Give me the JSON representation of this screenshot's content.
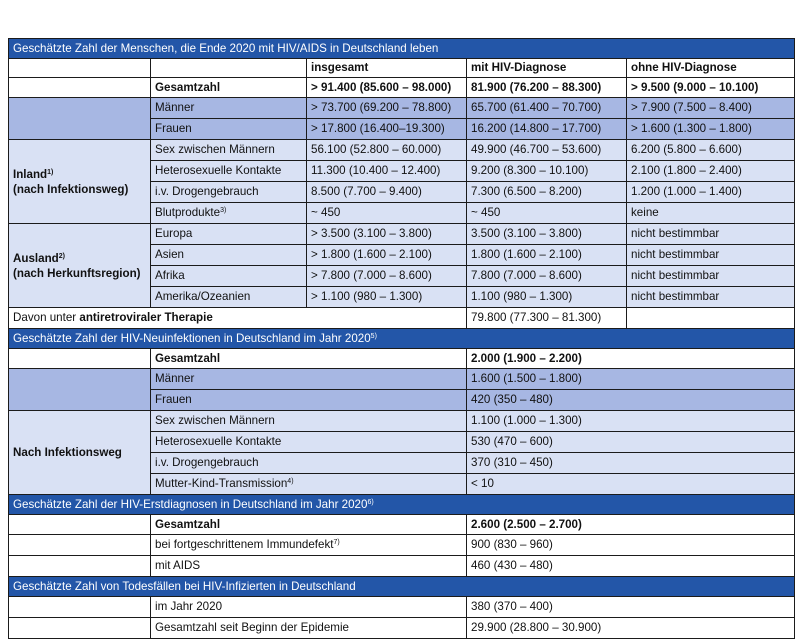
{
  "section1": {
    "title": "Geschätzte Zahl der Menschen, die Ende 2020 mit HIV/AIDS in Deutschland leben",
    "col_headers": [
      "insgesamt",
      "mit HIV-Diagnose",
      "ohne HIV-Diagnose"
    ],
    "total": {
      "label": "Gesamtzahl",
      "values": [
        "> 91.400 (85.600 – 98.000)",
        "81.900 (76.200 – 88.300)",
        "> 9.500 (9.000 – 10.100)"
      ]
    },
    "sex_rows": [
      {
        "label": "Männer",
        "values": [
          "> 73.700 (69.200 – 78.800)",
          "65.700 (61.400 – 70.700)",
          "> 7.900 (7.500 – 8.400)"
        ]
      },
      {
        "label": "Frauen",
        "values": [
          "> 17.800 (16.400–19.300)",
          "16.200 (14.800 – 17.700)",
          "> 1.600 (1.300 – 1.800)"
        ]
      }
    ],
    "inland_group": {
      "line1": "Inland",
      "sup": "1)",
      "line2": "(nach Infektionsweg)"
    },
    "inland_rows": [
      {
        "label": "Sex zwischen Männern",
        "values": [
          "56.100 (52.800 – 60.000)",
          "49.900 (46.700 – 53.600)",
          "6.200 (5.800 – 6.600)"
        ]
      },
      {
        "label": "Heterosexuelle Kontakte",
        "values": [
          "11.300 (10.400 – 12.400)",
          "9.200 (8.300 – 10.100)",
          "2.100 (1.800 – 2.400)"
        ]
      },
      {
        "label": "i.v. Drogengebrauch",
        "values": [
          "8.500 (7.700 – 9.400)",
          "7.300 (6.500 – 8.200)",
          "1.200 (1.000 – 1.400)"
        ]
      }
    ],
    "blood": {
      "label": "Blutprodukte",
      "sup": "3)",
      "values": [
        "~ 450",
        "~ 450",
        "keine"
      ]
    },
    "ausland_group": {
      "line1": "Ausland",
      "sup": "2)",
      "line2": "(nach Herkunftsregion)"
    },
    "ausland_rows": [
      {
        "label": "Europa",
        "values": [
          "> 3.500 (3.100 – 3.800)",
          "3.500 (3.100 – 3.800)",
          "nicht bestimmbar"
        ]
      },
      {
        "label": "Asien",
        "values": [
          "> 1.800 (1.600 – 2.100)",
          "1.800 (1.600 – 2.100)",
          "nicht bestimmbar"
        ]
      },
      {
        "label": "Afrika",
        "values": [
          "> 7.800 (7.000 – 8.600)",
          "7.800 (7.000 – 8.600)",
          "nicht bestimmbar"
        ]
      },
      {
        "label": "Amerika/Ozeanien",
        "values": [
          "> 1.100 (980 – 1.300)",
          "1.100 (980 – 1.300)",
          "nicht bestimmbar"
        ]
      }
    ],
    "art": {
      "prefix": "Davon unter ",
      "bold": "antiretroviraler Therapie",
      "value": "79.800 (77.300 – 81.300)"
    }
  },
  "section2": {
    "title": "Geschätzte Zahl der HIV-Neuinfektionen in Deutschland im Jahr 2020",
    "sup": "5)",
    "total": {
      "label": "Gesamtzahl",
      "value": "2.000 (1.900 – 2.200)"
    },
    "sex_rows": [
      {
        "label": "Männer",
        "value": "1.600 (1.500 – 1.800)"
      },
      {
        "label": "Frauen",
        "value": "420 (350 – 480)"
      }
    ],
    "group": "Nach Infektionsweg",
    "route_rows": [
      {
        "label": "Sex zwischen Männern",
        "value": "1.100 (1.000 – 1.300)"
      },
      {
        "label": "Heterosexuelle Kontakte",
        "value": "530 (470 – 600)"
      },
      {
        "label": "i.v. Drogengebrauch",
        "value": "370 (310 – 450)"
      }
    ],
    "mk": {
      "label": "Mutter-Kind-Transmission",
      "sup": "4)",
      "value": "< 10"
    }
  },
  "section3": {
    "title": "Geschätzte Zahl der HIV-Erstdiagnosen in Deutschland im Jahr 2020",
    "sup": "6)",
    "total": {
      "label": "Gesamtzahl",
      "value": "2.600 (2.500 – 2.700)"
    },
    "immun": {
      "label": "bei fortgeschrittenem Immundefekt",
      "sup": "7)",
      "value": "900 (830 – 960)"
    },
    "aids": {
      "label": "mit AIDS",
      "value": "460 (430 – 480)"
    }
  },
  "section4": {
    "title": "Geschätzte Zahl von Todesfällen bei HIV-Infizierten in Deutschland",
    "rows": [
      {
        "label": "im Jahr 2020",
        "value": "380 (370 – 400)"
      },
      {
        "label": "Gesamtzahl seit Beginn der Epidemie",
        "value": "29.900 (28.800 – 30.900)"
      }
    ]
  }
}
